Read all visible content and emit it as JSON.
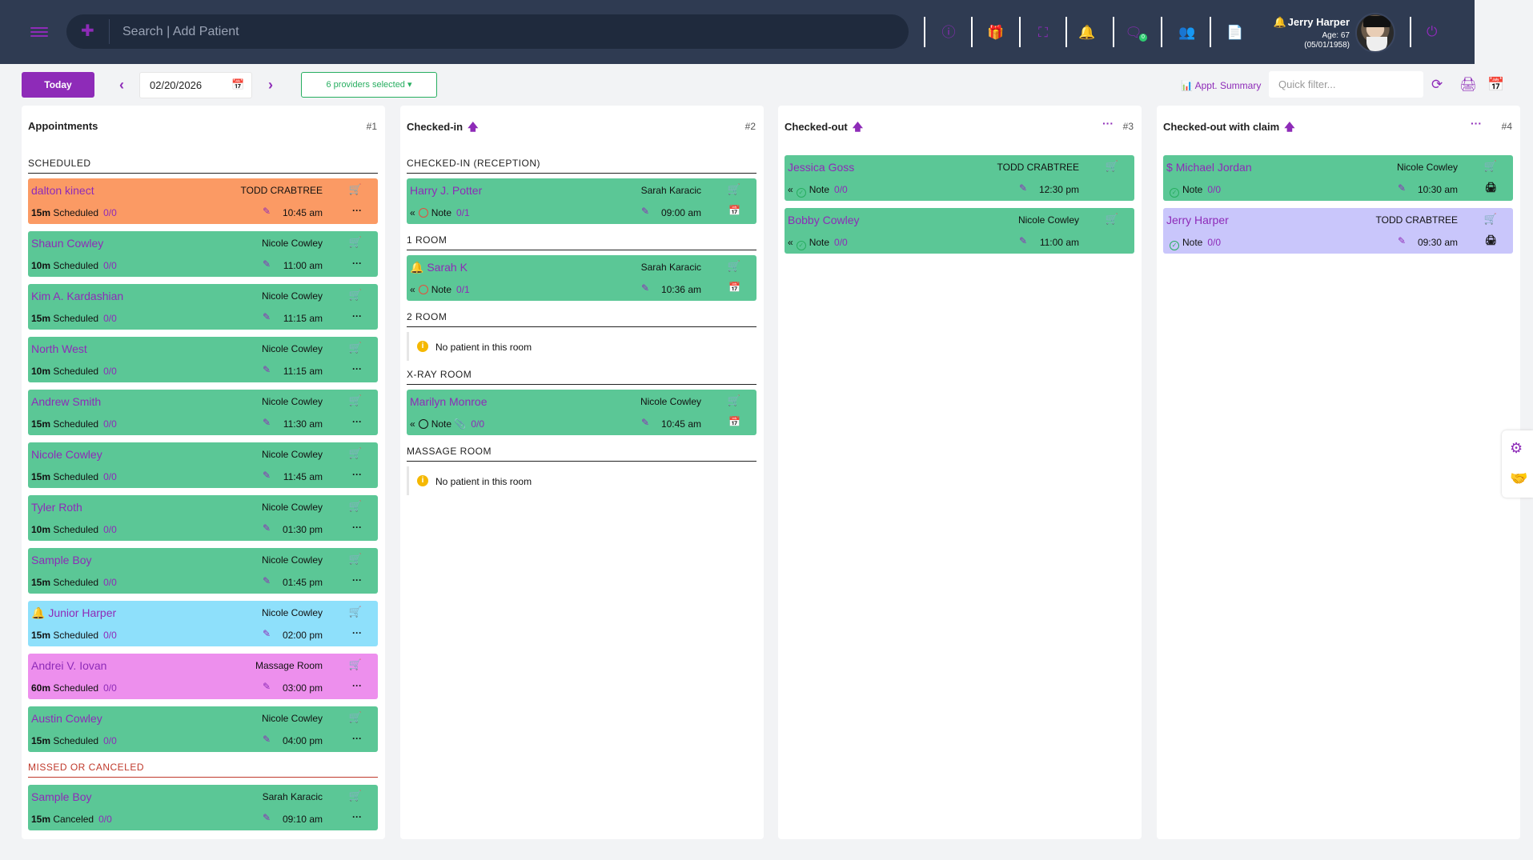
{
  "header": {
    "search_placeholder": "Search | Add Patient",
    "icons": [
      "menu-icon",
      "add-user-icon",
      "help-icon",
      "gift-icon",
      "fullscreen-icon",
      "bell-icon",
      "chat-icon",
      "users-icon",
      "document-icon",
      "power-icon"
    ],
    "chat_badge": "0",
    "user": {
      "name": "Jerry Harper",
      "age": "Age: 67",
      "dob": "(05/01/1958)"
    }
  },
  "toolbar": {
    "today_label": "Today",
    "date": "02/20/2026",
    "providers_label": "6 providers selected",
    "appt_summary_label": "Appt. Summary",
    "quick_filter_placeholder": "Quick filter..."
  },
  "columns": {
    "c1": {
      "title": "Appointments",
      "num": "#1",
      "sections": {
        "scheduled": "SCHEDULED",
        "missed": "MISSED OR CANCELED"
      },
      "cards": [
        {
          "name": "dalton kinect",
          "provider": "TODD CRABTREE",
          "dur": "15m",
          "status": "Scheduled",
          "count": "0/0",
          "time": "10:45 am",
          "color": "#fb9a64"
        },
        {
          "name": "Shaun Cowley",
          "provider": "Nicole Cowley",
          "dur": "10m",
          "status": "Scheduled",
          "count": "0/0",
          "time": "11:00 am",
          "color": "#5bc796"
        },
        {
          "name": "Kim A. Kardashian",
          "provider": "Nicole Cowley",
          "dur": "15m",
          "status": "Scheduled",
          "count": "0/0",
          "time": "11:15 am",
          "color": "#5bc796"
        },
        {
          "name": "North West",
          "provider": "Nicole Cowley",
          "dur": "10m",
          "status": "Scheduled",
          "count": "0/0",
          "time": "11:15 am",
          "color": "#5bc796"
        },
        {
          "name": "Andrew Smith",
          "provider": "Nicole Cowley",
          "dur": "15m",
          "status": "Scheduled",
          "count": "0/0",
          "time": "11:30 am",
          "color": "#5bc796"
        },
        {
          "name": "Nicole Cowley",
          "provider": "Nicole Cowley",
          "dur": "15m",
          "status": "Scheduled",
          "count": "0/0",
          "time": "11:45 am",
          "color": "#5bc796"
        },
        {
          "name": "Tyler Roth",
          "provider": "Nicole Cowley",
          "dur": "10m",
          "status": "Scheduled",
          "count": "0/0",
          "time": "01:30 pm",
          "color": "#5bc796"
        },
        {
          "name": "Sample Boy",
          "provider": "Nicole Cowley",
          "dur": "15m",
          "status": "Scheduled",
          "count": "0/0",
          "time": "01:45 pm",
          "color": "#5bc796"
        },
        {
          "name": "Junior Harper",
          "provider": "Nicole Cowley",
          "dur": "15m",
          "status": "Scheduled",
          "count": "0/0",
          "time": "02:00 pm",
          "color": "#8ee0fb"
        },
        {
          "name": "Andrei V. Iovan",
          "provider": "Massage Room",
          "dur": "60m",
          "status": "Scheduled",
          "count": "0/0",
          "time": "03:00 pm",
          "color": "#ed8fed"
        },
        {
          "name": "Austin Cowley",
          "provider": "Nicole Cowley",
          "dur": "15m",
          "status": "Scheduled",
          "count": "0/0",
          "time": "04:00 pm",
          "color": "#5bc796"
        },
        {
          "name": "Sample Boy",
          "provider": "Sarah Karacic",
          "dur": "15m",
          "status": "Canceled",
          "count": "0/0",
          "time": "09:10 am",
          "color": "#5bc796"
        }
      ]
    },
    "c2": {
      "title": "Checked-in",
      "num": "#2",
      "sections": {
        "reception": "CHECKED-IN (RECEPTION)",
        "room1": "1 ROOM",
        "room2": "2 ROOM",
        "xray": "X-RAY ROOM",
        "massage": "MASSAGE ROOM"
      },
      "empty_text": "No patient in this room",
      "note_label": "Note",
      "cards": [
        {
          "name": "Harry J. Potter",
          "provider": "Sarah Karacic",
          "count": "0/1",
          "time": "09:00 am"
        },
        {
          "name": "Sarah K",
          "provider": "Sarah Karacic",
          "count": "0/1",
          "time": "10:36 am"
        },
        {
          "name": "Marilyn Monroe",
          "provider": "Nicole Cowley",
          "count": "0/0",
          "time": "10:45 am"
        }
      ]
    },
    "c3": {
      "title": "Checked-out",
      "num": "#3",
      "note_label": "Note",
      "cards": [
        {
          "name": "Jessica Goss",
          "provider": "TODD CRABTREE",
          "count": "0/0",
          "time": "12:30 pm"
        },
        {
          "name": "Bobby Cowley",
          "provider": "Nicole Cowley",
          "count": "0/0",
          "time": "11:00 am"
        }
      ]
    },
    "c4": {
      "title": "Checked-out with claim",
      "num": "#4",
      "note_label": "Note",
      "cards": [
        {
          "name": "Michael Jordan",
          "provider": "Nicole Cowley",
          "count": "0/0",
          "time": "10:30 am"
        },
        {
          "name": "Jerry Harper",
          "provider": "TODD CRABTREE",
          "count": "0/0",
          "time": "09:30 am"
        }
      ]
    }
  }
}
